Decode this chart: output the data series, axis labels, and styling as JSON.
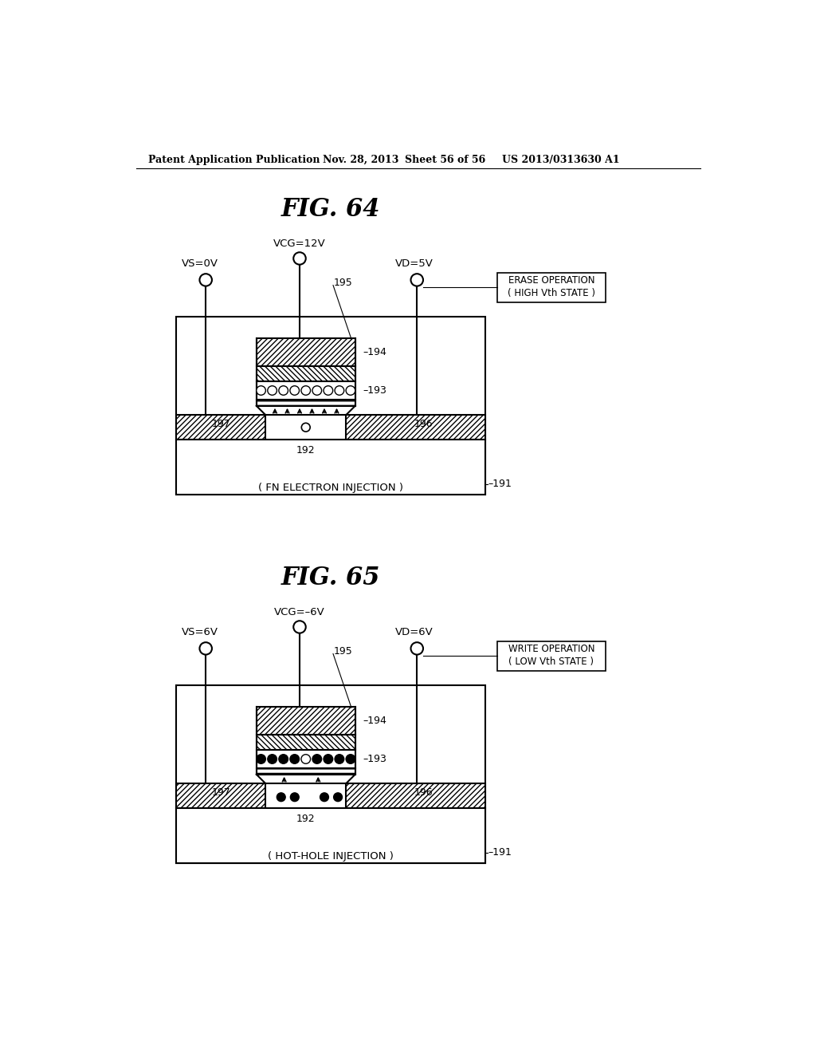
{
  "bg_color": "#ffffff",
  "header_text": "Patent Application Publication",
  "header_date": "Nov. 28, 2013",
  "header_sheet": "Sheet 56 of 56",
  "header_patent": "US 2013/0313630 A1",
  "fig64_title": "FIG. 64",
  "fig65_title": "FIG. 65",
  "fig64_vcg": "VCG=12V",
  "fig64_vs": "VS=0V",
  "fig64_vd": "VD=5V",
  "fig65_vcg": "VCG=–6V",
  "fig65_vs": "VS=6V",
  "fig65_vd": "VD=6V",
  "fig64_fn": "( FN ELECTRON INJECTION )",
  "fig65_hot": "( HOT-HOLE INJECTION )",
  "fig64_erase1": "ERASE OPERATION",
  "fig64_erase2": "( HIGH Vth STATE )",
  "fig65_write1": "WRITE OPERATION",
  "fig65_write2": "( LOW Vth STATE )",
  "lw": 1.5
}
